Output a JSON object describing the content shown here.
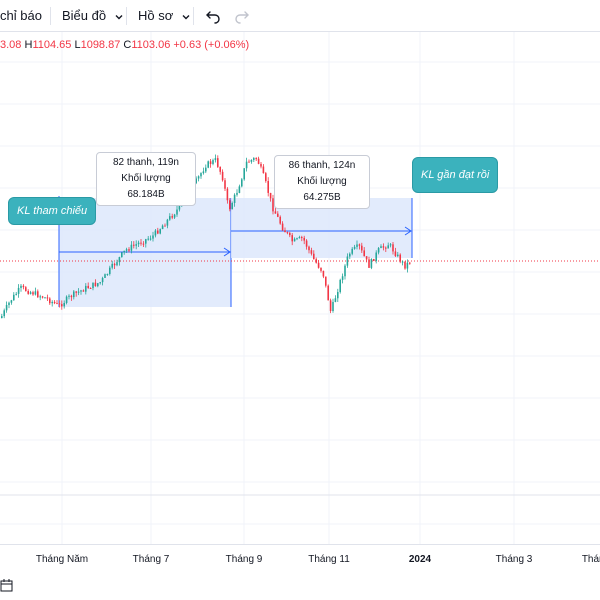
{
  "toolbar": {
    "indicators_label": "chỉ báo",
    "chart_label": "Biểu đồ",
    "profile_label": "Hồ sơ"
  },
  "legend": {
    "o_value": "3.08",
    "h_key": "H",
    "h_value": "1104.65",
    "l_key": "L",
    "l_value": "1098.87",
    "c_key": "C",
    "c_value": "1103.06",
    "change": "+0.63 (+0.06%)"
  },
  "annotations": {
    "range1_line1": "82 thanh, 119n",
    "range1_line2": "Khối lượng 68.184B",
    "range2_line1": "86 thanh, 124n",
    "range2_line2": "Khối lượng 64.275B",
    "callout_left": "KL tham chiếu",
    "callout_right": "KL gần đạt rồi"
  },
  "x_axis": {
    "labels": [
      "Tháng Năm",
      "Tháng 7",
      "Tháng 9",
      "Tháng 11",
      "2024",
      "Tháng 3",
      "Tháng"
    ]
  },
  "colors": {
    "up": "#26a69a",
    "down": "#f23645",
    "range_fill": "#dde7fb",
    "range_line": "#2962ff",
    "callout": "#3bb2bd"
  },
  "chart_data": {
    "type": "candlestick",
    "x_labels": [
      "Tháng Năm",
      "Tháng 7",
      "Tháng 9",
      "Tháng 11",
      "2024",
      "Tháng 3"
    ],
    "legend_ohlc": {
      "h": 1104.65,
      "l": 1098.87,
      "c": 1103.06,
      "change": 0.63,
      "change_pct": 0.06
    },
    "ranges": [
      {
        "bars": 82,
        "days": 119,
        "volume": "68.184B"
      },
      {
        "bars": 86,
        "days": 124,
        "volume": "64.275B"
      }
    ]
  }
}
